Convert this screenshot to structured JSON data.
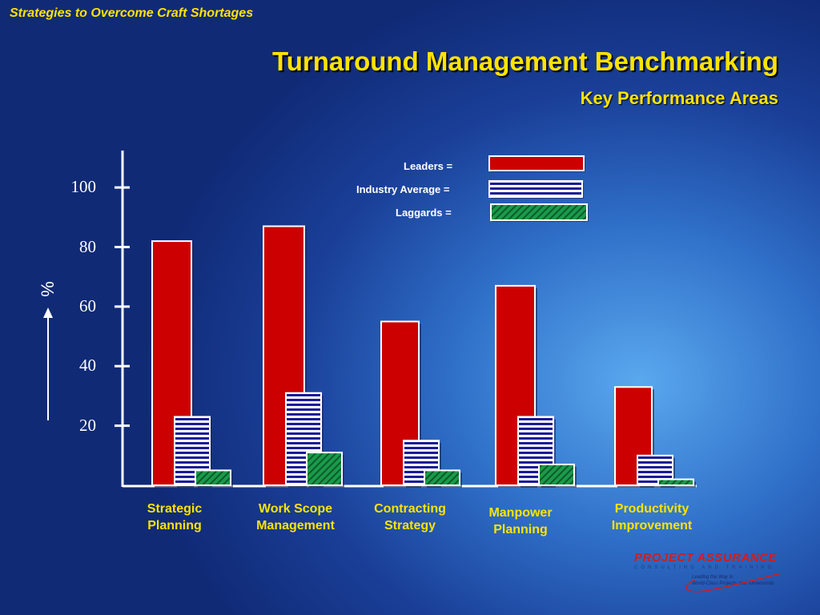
{
  "header": {
    "section_title": "Strategies to Overcome Craft Shortages"
  },
  "chart_data": {
    "type": "bar",
    "title": "Turnaround Management Benchmarking",
    "subtitle": "Key Performance Areas",
    "ylabel": "%",
    "ylim": [
      0,
      110
    ],
    "yticks": [
      20,
      40,
      60,
      80,
      100
    ],
    "categories": [
      "Strategic Planning",
      "Work Scope Management",
      "Contracting Strategy",
      "Manpower Planning",
      "Productivity Improvement"
    ],
    "series": [
      {
        "name": "Leaders =",
        "values": [
          82,
          87,
          55,
          67,
          33
        ],
        "color": "#cc0000",
        "pattern": "solid"
      },
      {
        "name": "Industry Average =",
        "values": [
          23,
          31,
          15,
          23,
          10
        ],
        "color": "#1a1a99",
        "pattern": "horizontal-stripes"
      },
      {
        "name": "Laggards =",
        "values": [
          5,
          11,
          5,
          7,
          2
        ],
        "color": "#1a9a4a",
        "pattern": "diagonal-hatch"
      }
    ],
    "legend_position": "top-right",
    "grid": false
  },
  "logo": {
    "name": "PROJECT ASSURANCE",
    "sub": "CONSULTING AND TRAINING",
    "tagline_1": "Leading the Way to",
    "tagline_2": "World-Class Projects and Turnarounds"
  }
}
